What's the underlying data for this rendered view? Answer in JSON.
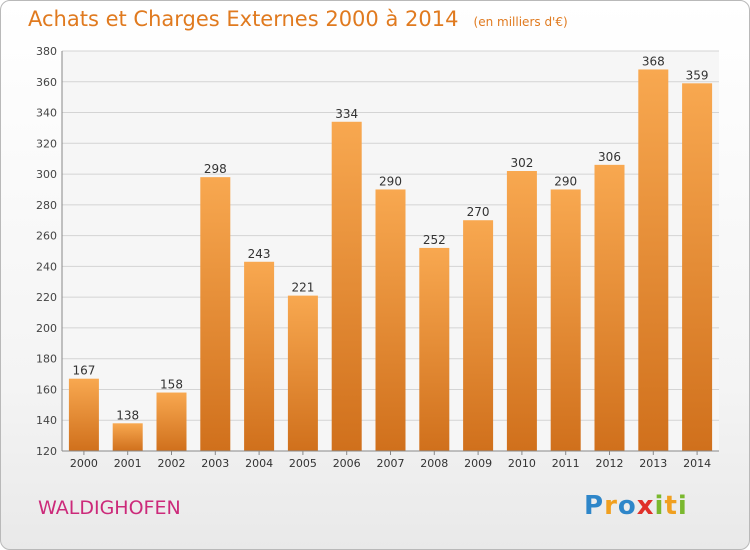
{
  "header": {
    "title": "Achats et Charges Externes 2000 à 2014",
    "subtitle": "(en milliers d'€)"
  },
  "footer": {
    "city": "WALDIGHOFEN",
    "logo_text": "Proxiti",
    "logo_letters": [
      {
        "char": "P",
        "color": "#2e86c9"
      },
      {
        "char": "r",
        "color": "#f0a020"
      },
      {
        "char": "o",
        "color": "#2e86c9"
      },
      {
        "char": "x",
        "color": "#e0302a"
      },
      {
        "char": "i",
        "color": "#7ab82e"
      },
      {
        "char": "t",
        "color": "#f0a020"
      },
      {
        "char": "i",
        "color": "#7ab82e"
      }
    ]
  },
  "chart_data": {
    "type": "bar",
    "title": "Achats et Charges Externes 2000 à 2014",
    "subtitle": "(en milliers d'€)",
    "xlabel": "",
    "ylabel": "",
    "categories": [
      "2000",
      "2001",
      "2002",
      "2003",
      "2004",
      "2005",
      "2006",
      "2007",
      "2008",
      "2009",
      "2010",
      "2011",
      "2012",
      "2013",
      "2014"
    ],
    "values": [
      167,
      138,
      158,
      298,
      243,
      221,
      334,
      290,
      252,
      270,
      302,
      290,
      306,
      368,
      359
    ],
    "ylim": [
      120,
      380
    ],
    "yticks": [
      120,
      140,
      160,
      180,
      200,
      220,
      240,
      260,
      280,
      300,
      320,
      340,
      360,
      380
    ],
    "grid": true,
    "bar_color_top": "#f8a850",
    "bar_color_bottom": "#d0701c"
  }
}
